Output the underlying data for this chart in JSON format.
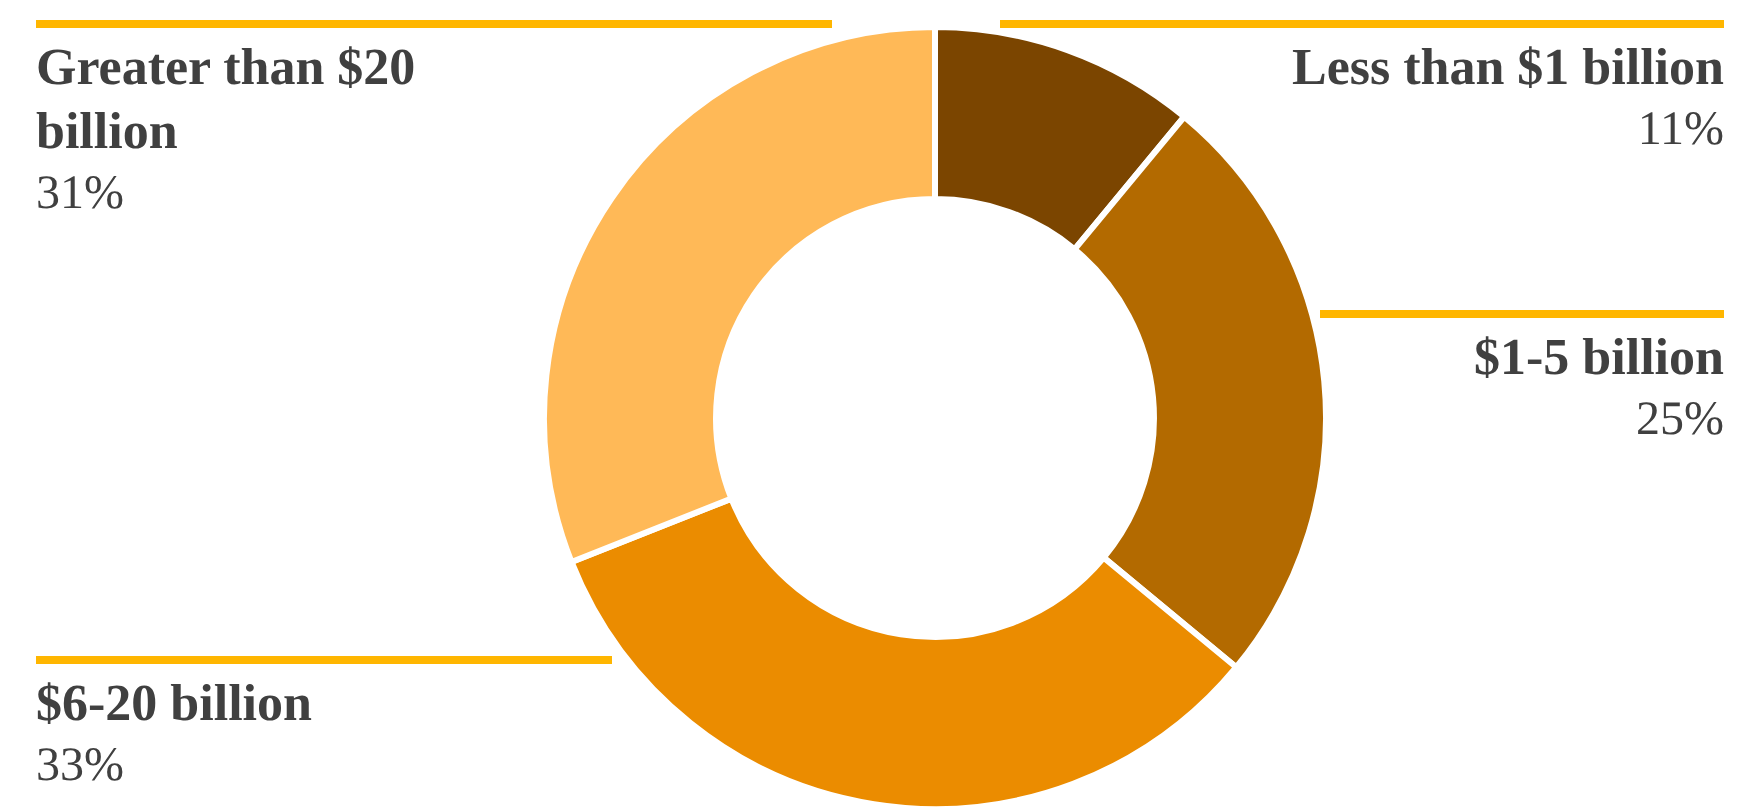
{
  "chart_data": {
    "type": "donut",
    "categories": [
      "Less than $1 billion",
      "$1-5 billion",
      "$6-20 billion",
      "Greater than $20 billion"
    ],
    "values": [
      11,
      25,
      33,
      31
    ],
    "value_labels": [
      "11%",
      "25%",
      "33%",
      "31%"
    ],
    "colors": [
      "#7b4500",
      "#b36a00",
      "#eb8c00",
      "#ffb957"
    ],
    "legend": false
  }
}
